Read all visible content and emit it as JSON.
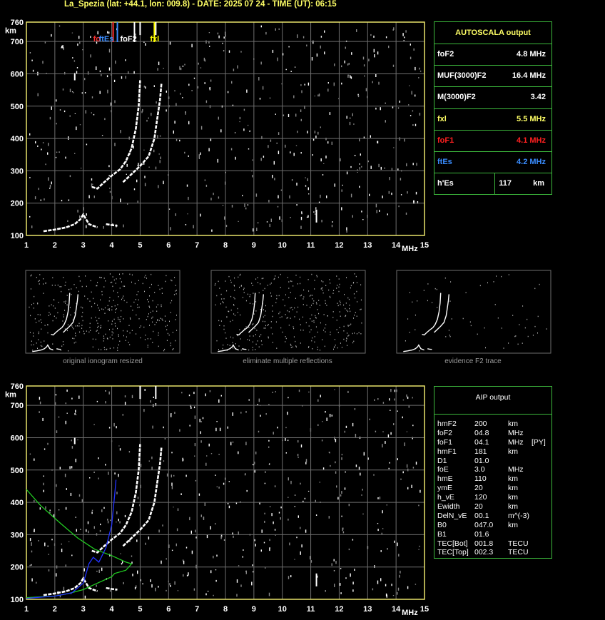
{
  "header": "La_Spezia (lat: +44.1, lon: 009.8) - DATE: 2025 07 24 - TIME (UT): 06:15",
  "plot_labels": {
    "km": "km",
    "mhz": "MHz",
    "y_ticks": [
      "760",
      "700",
      "600",
      "500",
      "400",
      "300",
      "200",
      "100"
    ],
    "x_ticks": [
      "1",
      "2",
      "3",
      "4",
      "5",
      "6",
      "7",
      "8",
      "9",
      "10",
      "11",
      "12",
      "13",
      "14",
      "15"
    ],
    "markers": [
      {
        "label": "fo",
        "freq": 4.05,
        "color": "#ff3030"
      },
      {
        "label": "ftEs",
        "freq": 4.2,
        "color": "#3a8dff"
      },
      {
        "label": "foF2",
        "freq": 4.8,
        "color": "#ffffff"
      },
      {
        "label": "fxl",
        "freq": 5.5,
        "color": "#ffff00"
      }
    ]
  },
  "autoscala": {
    "title": "AUTOSCALA output",
    "rows": [
      {
        "name": "foF2",
        "value": "4.8 MHz",
        "color": "#ffffff"
      },
      {
        "name": "MUF(3000)F2",
        "value": "16.4 MHz",
        "color": "#ffffff"
      },
      {
        "name": "M(3000)F2",
        "value": "3.42",
        "color": "#ffffff"
      },
      {
        "name": "fxl",
        "value": "5.5 MHz",
        "color": "#ffff66"
      },
      {
        "name": "foF1",
        "value": "4.1 MHz",
        "color": "#ff2020"
      },
      {
        "name": "ftEs",
        "value": "4.2 MHz",
        "color": "#3a8dff"
      },
      {
        "name": "h'Es",
        "value": "117",
        "unit": "km",
        "color": "#ffffff"
      }
    ]
  },
  "aip": {
    "title": "AIP output",
    "rows": [
      [
        "hmF2",
        "200",
        "km",
        ""
      ],
      [
        "foF2",
        "04.8",
        "MHz",
        ""
      ],
      [
        "foF1",
        "04.1",
        "MHz",
        "[PY]"
      ],
      [
        "hmF1",
        "181",
        "km",
        ""
      ],
      [
        "D1",
        "01.0",
        "",
        ""
      ],
      [
        "foE",
        "3.0",
        "MHz",
        ""
      ],
      [
        "hmE",
        "110",
        "km",
        ""
      ],
      [
        "ymE",
        "20",
        "km",
        ""
      ],
      [
        "h_vE",
        "120",
        "km",
        ""
      ],
      [
        "Ewidth",
        "20",
        "km",
        ""
      ],
      [
        "DelN_vE",
        "00.1",
        "m^(-3)",
        ""
      ],
      [
        "B0",
        "047.0",
        "km",
        ""
      ],
      [
        "B1",
        "01.6",
        "",
        ""
      ],
      [
        "TEC[Bot]",
        "001.8",
        "TECU",
        ""
      ],
      [
        "TEC[Top]",
        "002.3",
        "TECU",
        ""
      ]
    ]
  },
  "captions": [
    "original ionogram resized",
    "eliminate multiple reflections",
    "evidence F2 trace"
  ],
  "chart_data": [
    {
      "type": "scatter",
      "xlabel": "MHz",
      "ylabel": "km",
      "xlim": [
        1,
        15
      ],
      "ylim": [
        100,
        760
      ],
      "grid": true,
      "series": [
        {
          "name": "O-trace E",
          "points": [
            [
              1.6,
              113
            ],
            [
              2.0,
              118
            ],
            [
              2.4,
              125
            ],
            [
              2.7,
              135
            ],
            [
              2.9,
              150
            ],
            [
              3.0,
              165
            ],
            [
              3.2,
              135
            ],
            [
              3.5,
              125
            ]
          ]
        },
        {
          "name": "F1 trace",
          "points": [
            [
              3.3,
              250
            ],
            [
              3.5,
              245
            ],
            [
              3.7,
              262
            ],
            [
              4.0,
              285
            ],
            [
              4.3,
              305
            ],
            [
              4.5,
              330
            ],
            [
              4.7,
              370
            ],
            [
              4.85,
              430
            ],
            [
              4.95,
              500
            ],
            [
              5.0,
              580
            ]
          ]
        },
        {
          "name": "X trace",
          "points": [
            [
              4.4,
              265
            ],
            [
              4.7,
              290
            ],
            [
              5.0,
              315
            ],
            [
              5.3,
              345
            ],
            [
              5.5,
              400
            ],
            [
              5.6,
              460
            ],
            [
              5.7,
              520
            ],
            [
              5.75,
              570
            ]
          ]
        },
        {
          "name": "Es fragment",
          "points": [
            [
              3.8,
              135
            ],
            [
              4.0,
              132
            ],
            [
              4.2,
              130
            ]
          ]
        }
      ]
    },
    {
      "type": "line",
      "xlabel": "MHz",
      "ylabel": "km",
      "xlim": [
        1,
        15
      ],
      "ylim": [
        100,
        760
      ],
      "grid": true,
      "series": [
        {
          "name": "green profile",
          "points": [
            [
              1.0,
              440
            ],
            [
              1.5,
              390
            ],
            [
              2.2,
              335
            ],
            [
              2.8,
              290
            ],
            [
              3.4,
              255
            ],
            [
              4.0,
              235
            ],
            [
              4.5,
              215
            ],
            [
              4.7,
              210
            ],
            [
              4.5,
              190
            ],
            [
              4.1,
              180
            ],
            [
              4.0,
              170
            ],
            [
              3.5,
              150
            ],
            [
              3.0,
              130
            ],
            [
              2.5,
              118
            ],
            [
              2.0,
              110
            ],
            [
              1.0,
              105
            ]
          ]
        },
        {
          "name": "blue profile",
          "points": [
            [
              1.0,
              103
            ],
            [
              2.0,
              110
            ],
            [
              2.6,
              120
            ],
            [
              3.0,
              150
            ],
            [
              3.2,
              210
            ],
            [
              3.35,
              230
            ],
            [
              3.55,
              215
            ],
            [
              3.8,
              260
            ],
            [
              4.0,
              330
            ],
            [
              4.1,
              420
            ],
            [
              4.15,
              470
            ]
          ]
        }
      ]
    }
  ]
}
